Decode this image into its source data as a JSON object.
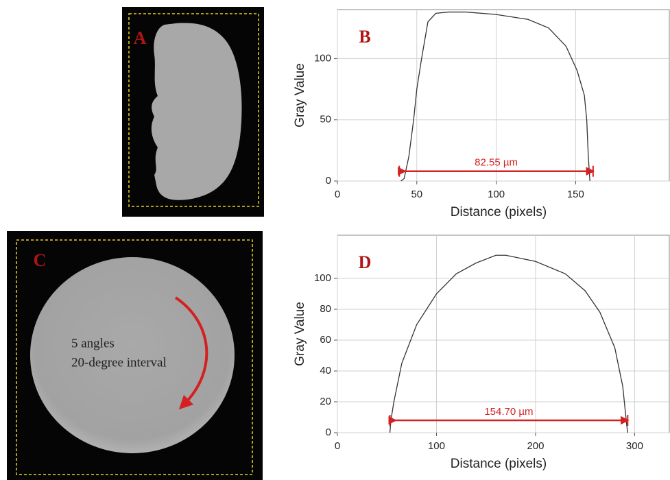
{
  "images": [
    {
      "label": "A"
    },
    {
      "label": "C",
      "text": [
        "5 angles",
        "20-degree interval"
      ]
    }
  ],
  "chart_data": [
    {
      "type": "line",
      "label": "B",
      "xlabel": "Distance (pixels)",
      "ylabel": "Gray Value",
      "x": [
        40,
        42,
        45,
        48,
        50,
        53,
        57,
        62,
        70,
        81,
        100,
        120,
        133,
        144,
        151,
        155.5,
        157,
        158,
        159
      ],
      "values": [
        0,
        2,
        20,
        50,
        75,
        100,
        130,
        137,
        138,
        138,
        136,
        132,
        125,
        110,
        90,
        70,
        50,
        20,
        0
      ],
      "color": "#333333",
      "xlim": [
        0,
        209
      ],
      "xticks": [
        0,
        50,
        100,
        150
      ],
      "ylim": [
        0,
        140
      ],
      "yticks": [
        0,
        50,
        100
      ],
      "grid": true,
      "annotation": {
        "text": "82.55 µm",
        "x": [
          39,
          161
        ],
        "y": 8,
        "color": "#d42020"
      }
    },
    {
      "type": "line",
      "label": "D",
      "xlabel": "Distance (pixels)",
      "ylabel": "Gray Value",
      "x": [
        53,
        54,
        57,
        65,
        80,
        100,
        120,
        140,
        160,
        170,
        200,
        230,
        250,
        265,
        280,
        288,
        292,
        293
      ],
      "values": [
        0,
        8,
        20,
        45,
        70,
        90,
        103,
        110,
        115,
        115,
        111,
        103,
        92,
        78,
        55,
        30,
        5,
        0
      ],
      "color": "#333333",
      "xlim": [
        0,
        335
      ],
      "xticks": [
        0,
        100,
        200,
        300
      ],
      "ylim": [
        0,
        128
      ],
      "yticks": [
        0,
        20,
        40,
        60,
        80,
        100
      ],
      "grid": true,
      "annotation": {
        "text": "154.70 µm",
        "x": [
          53,
          293
        ],
        "y": 8,
        "color": "#d42020"
      }
    }
  ]
}
